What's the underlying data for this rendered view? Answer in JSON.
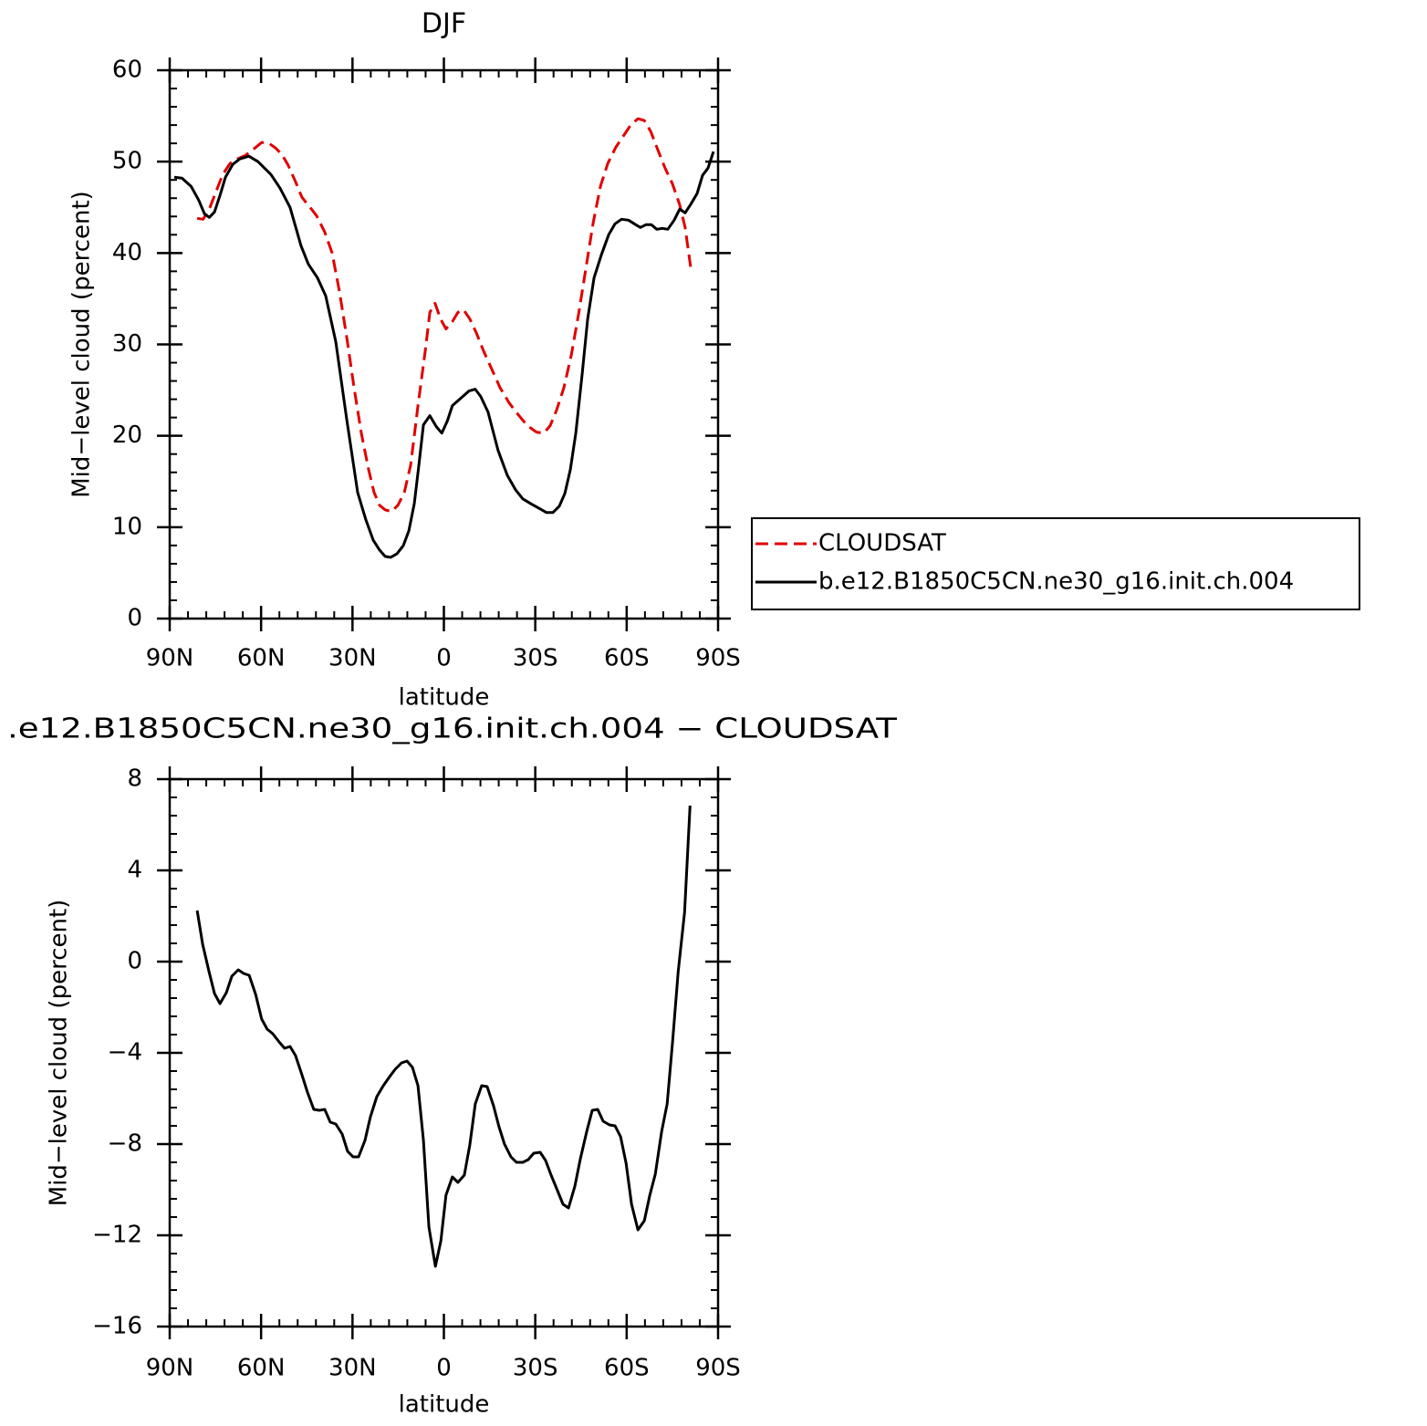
{
  "chart_data": [
    {
      "type": "line",
      "title": "DJF",
      "xlabel": "latitude",
      "ylabel": "Mid−level cloud (percent)",
      "xlim": [
        90,
        -90
      ],
      "xticks": [
        {
          "value": 90,
          "label": "90N"
        },
        {
          "value": 60,
          "label": "60N"
        },
        {
          "value": 30,
          "label": "30N"
        },
        0,
        {
          "value": -30,
          "label": "30S"
        },
        {
          "value": -60,
          "label": "60S"
        },
        {
          "value": -90,
          "label": "90S"
        }
      ],
      "ylim": [
        0,
        60
      ],
      "yticks": [
        0,
        10,
        20,
        30,
        40,
        50,
        60
      ],
      "legend": "right",
      "series": [
        {
          "name": "CLOUDSAT",
          "color": "#e00000",
          "linestyle": "dashed",
          "x": [
            81,
            79,
            76.8,
            74.7,
            72.6,
            70.2,
            67.8,
            65.1,
            62.7,
            59.8,
            57.4,
            55.3,
            53.2,
            51.1,
            48.7,
            46.6,
            44.2,
            41.8,
            39.1,
            36.7,
            34.3,
            31.9,
            29.5,
            27.1,
            24.7,
            22.9,
            21.1,
            19.3,
            17.2,
            15.1,
            13,
            10.9,
            8.5,
            6.1,
            4.6,
            2.9,
            1.1,
            -0.7,
            -2.8,
            -4.6,
            -6.4,
            -8.5,
            -10.6,
            -13,
            -15.7,
            -18.4,
            -21.4,
            -24.4,
            -27.4,
            -30.4,
            -32.8,
            -34.9,
            -37,
            -39.4,
            -41.8,
            -44.2,
            -46.6,
            -49,
            -51.4,
            -53.8,
            -56.5,
            -58.9,
            -61.3,
            -63.7,
            -65.8,
            -67.9,
            -70.2,
            -72.6,
            -75,
            -77.4,
            -79.2,
            -81
          ],
          "values": [
            43.8,
            43.7,
            45,
            46.8,
            48.6,
            49.8,
            50.3,
            50.7,
            51.3,
            52.1,
            52,
            51.5,
            50.8,
            49.6,
            47.8,
            46.1,
            45.1,
            44.1,
            42.3,
            40,
            35.8,
            30.8,
            25.3,
            20.3,
            16.3,
            13.8,
            12.4,
            11.9,
            11.7,
            12.4,
            13.8,
            16.8,
            23.3,
            29.3,
            33.5,
            34.5,
            32.8,
            31.7,
            32.5,
            33.5,
            33.8,
            32.8,
            31.3,
            29.3,
            27.3,
            25.3,
            23.6,
            22.3,
            21.1,
            20.4,
            20.3,
            21.1,
            22.8,
            25.3,
            28.8,
            33.3,
            38.3,
            43.3,
            47.3,
            49.8,
            51.6,
            52.8,
            54,
            54.7,
            54.5,
            53.3,
            51.3,
            49.3,
            47.6,
            45.3,
            42.8,
            38.5
          ]
        },
        {
          "name": "b.e12.B1850C5CN.ne30_g16.init.ch.004",
          "color": "#000000",
          "linestyle": "solid",
          "x": [
            88.5,
            86,
            83,
            80.5,
            78.6,
            77,
            75.3,
            73.5,
            71.7,
            69.3,
            67,
            64,
            61,
            56.8,
            53.8,
            50.5,
            46.9,
            44.5,
            41.5,
            38.8,
            35.5,
            31.9,
            28.3,
            25.6,
            23.2,
            21.1,
            19.3,
            17.5,
            15.4,
            13.3,
            11.5,
            9.7,
            8.2,
            6.7,
            4.6,
            2.5,
            0.7,
            -1.1,
            -2.8,
            -5.5,
            -8.2,
            -10.3,
            -12.1,
            -14.5,
            -17.8,
            -20.8,
            -23.5,
            -25.9,
            -28.9,
            -31.6,
            -33.7,
            -35.8,
            -37.9,
            -39.7,
            -41.5,
            -43.3,
            -45.4,
            -47.2,
            -49.3,
            -51.7,
            -54.1,
            -56.2,
            -58.3,
            -60.6,
            -63,
            -64.5,
            -66.3,
            -68.1,
            -69.9,
            -71.7,
            -73.5,
            -75.6,
            -77.4,
            -79.2,
            -81,
            -83.1,
            -84.9,
            -86.7,
            -88.5
          ],
          "values": [
            48.3,
            48.2,
            47.3,
            45.8,
            44.3,
            43.9,
            44.5,
            46.3,
            48.3,
            49.7,
            50.3,
            50.6,
            50,
            48.6,
            47.1,
            45,
            40.8,
            38.8,
            37.3,
            35.3,
            30.3,
            21.8,
            13.8,
            10.8,
            8.6,
            7.5,
            6.8,
            6.7,
            7.1,
            8,
            9.6,
            12.6,
            16.8,
            21.2,
            22.2,
            21,
            20.3,
            21.6,
            23.3,
            24.1,
            24.9,
            25.1,
            24.3,
            22.6,
            18.4,
            15.7,
            14.1,
            13.1,
            12.5,
            12,
            11.6,
            11.6,
            12.3,
            13.7,
            16.3,
            20.3,
            26.8,
            32.8,
            37.3,
            39.8,
            42,
            43.2,
            43.7,
            43.6,
            43.1,
            42.8,
            43.1,
            43.1,
            42.6,
            42.7,
            42.6,
            43.6,
            44.8,
            44.4,
            45.3,
            46.5,
            48.5,
            49.3,
            51.1
          ]
        }
      ]
    },
    {
      "type": "line",
      "title": ".e12.B1850C5CN.ne30_g16.init.ch.004 − CLOUDSAT",
      "xlabel": "latitude",
      "ylabel": "Mid−level cloud (percent)",
      "xlim": [
        90,
        -90
      ],
      "xticks": [
        {
          "value": 90,
          "label": "90N"
        },
        {
          "value": 60,
          "label": "60N"
        },
        {
          "value": 30,
          "label": "30N"
        },
        0,
        {
          "value": -30,
          "label": "30S"
        },
        {
          "value": -60,
          "label": "60S"
        },
        {
          "value": -90,
          "label": "90S"
        }
      ],
      "ylim": [
        -16,
        8
      ],
      "yticks": [
        {
          "value": -16,
          "label": "−16"
        },
        {
          "value": -12,
          "label": "−12"
        },
        {
          "value": -8,
          "label": "−8"
        },
        {
          "value": -4,
          "label": "−4"
        },
        0,
        4,
        8
      ],
      "series": [
        {
          "color": "#000000",
          "linestyle": "solid",
          "x": [
            81,
            79.2,
            77.1,
            75.3,
            73.5,
            71.4,
            69.6,
            67.5,
            65.7,
            63.9,
            61.8,
            59.8,
            58,
            56.2,
            54.1,
            52.3,
            50.5,
            48.7,
            46.6,
            44.8,
            42.7,
            40.9,
            39.1,
            37.3,
            35.5,
            33.4,
            31.6,
            29.8,
            28,
            25.9,
            24.1,
            22,
            19.9,
            17.8,
            16,
            13.9,
            12.1,
            10.3,
            8.5,
            6.7,
            4.9,
            2.8,
            1,
            -0.7,
            -2.8,
            -4.6,
            -6.7,
            -8.5,
            -10.3,
            -12.4,
            -14.2,
            -16.3,
            -18.1,
            -19.9,
            -22,
            -23.8,
            -25.9,
            -27.7,
            -29.5,
            -31.6,
            -33.4,
            -35.2,
            -37.3,
            -39.1,
            -40.9,
            -43,
            -44.8,
            -46.9,
            -48.7,
            -50.5,
            -52.3,
            -54.4,
            -56.2,
            -58,
            -59.8,
            -61.6,
            -63.7,
            -65.8,
            -67.6,
            -69.4,
            -71.5,
            -73.3,
            -75.1,
            -76.9,
            -79,
            -80.8
          ],
          "values": [
            2.24,
            0.76,
            -0.44,
            -1.4,
            -1.84,
            -1.36,
            -0.64,
            -0.36,
            -0.52,
            -0.6,
            -1.44,
            -2.52,
            -2.96,
            -3.16,
            -3.52,
            -3.8,
            -3.72,
            -4.12,
            -4.96,
            -5.72,
            -6.48,
            -6.52,
            -6.48,
            -7.04,
            -7.12,
            -7.56,
            -8.32,
            -8.56,
            -8.56,
            -7.84,
            -6.8,
            -5.92,
            -5.44,
            -5.04,
            -4.72,
            -4.44,
            -4.36,
            -4.64,
            -5.44,
            -7.84,
            -11.64,
            -13.36,
            -12.24,
            -10.24,
            -9.44,
            -9.68,
            -9.36,
            -8.04,
            -6.24,
            -5.44,
            -5.48,
            -6.32,
            -7.24,
            -8,
            -8.56,
            -8.8,
            -8.8,
            -8.68,
            -8.4,
            -8.36,
            -8.72,
            -9.36,
            -10.04,
            -10.64,
            -10.8,
            -9.84,
            -8.64,
            -7.44,
            -6.52,
            -6.48,
            -7,
            -7.16,
            -7.2,
            -7.68,
            -8.84,
            -10.64,
            -11.76,
            -11.36,
            -10.24,
            -9.32,
            -7.44,
            -6.24,
            -3.44,
            -0.44,
            2.16,
            6.84
          ]
        }
      ]
    }
  ]
}
